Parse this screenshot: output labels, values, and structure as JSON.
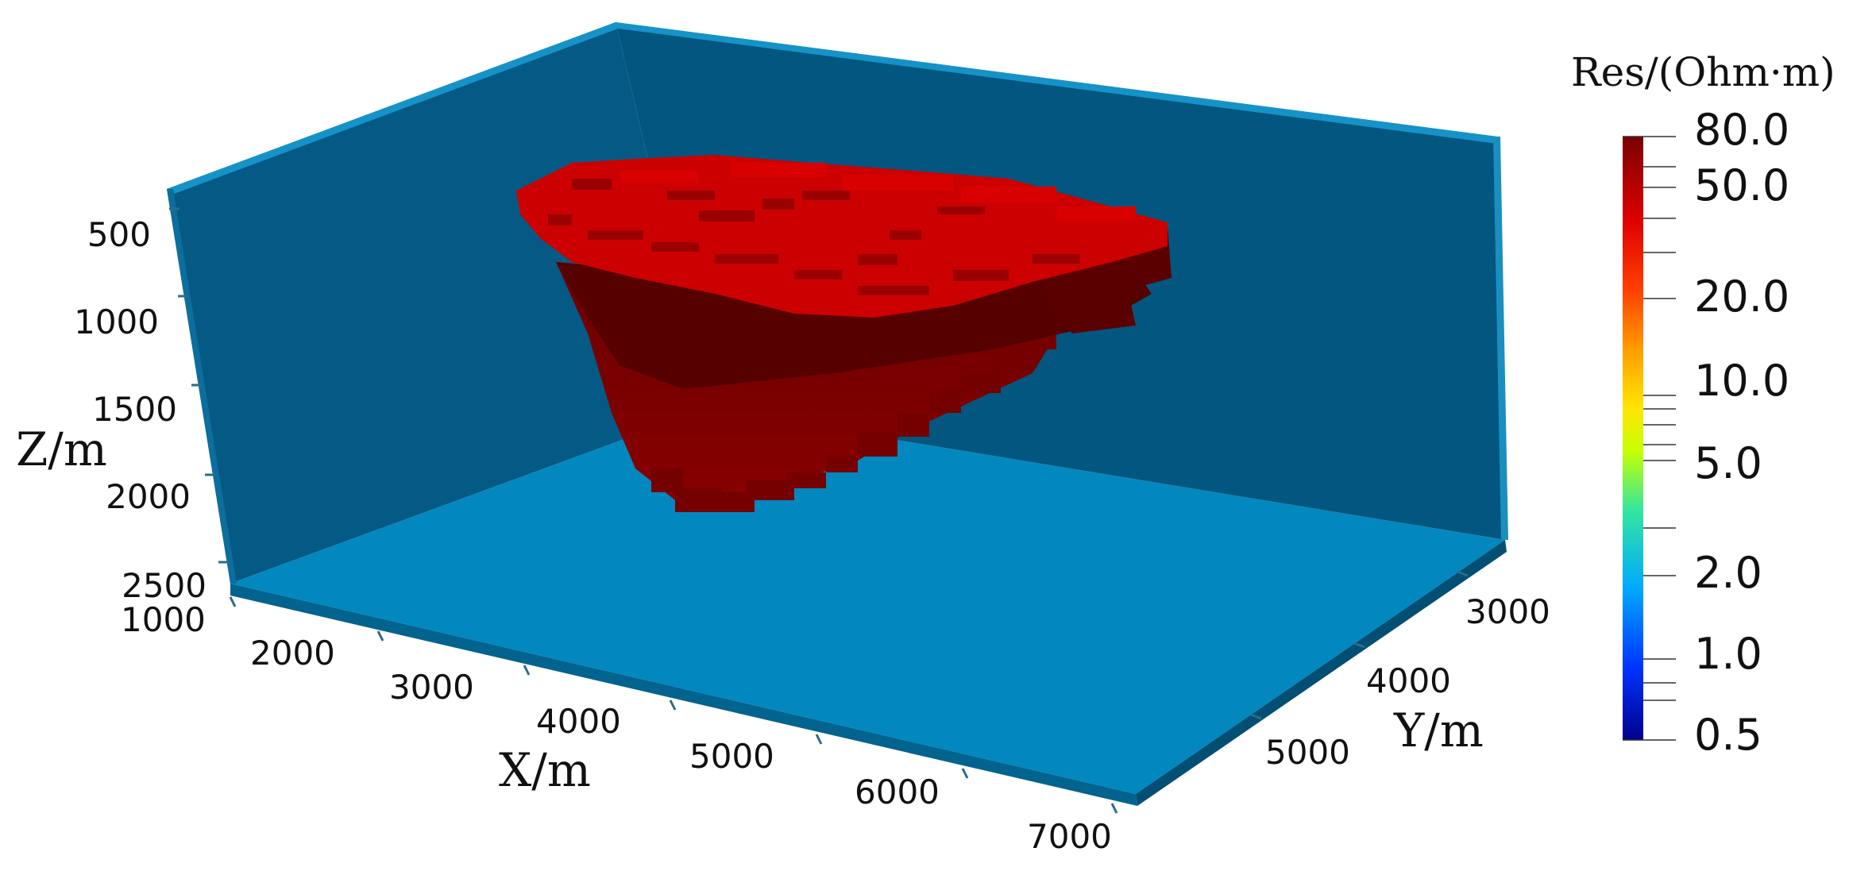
{
  "axes": {
    "z": {
      "title": "Z/m",
      "ticks": [
        "500",
        "1000",
        "1500",
        "2000",
        "2500"
      ]
    },
    "x": {
      "title": "X/m",
      "ticks": [
        "1000",
        "2000",
        "3000",
        "4000",
        "5000",
        "6000",
        "7000"
      ]
    },
    "y": {
      "title": "Y/m",
      "ticks": [
        "3000",
        "4000",
        "5000"
      ]
    }
  },
  "colorbar": {
    "title": "Res/(Ohm·m)",
    "scale": "log",
    "range": [
      0.5,
      80.0
    ],
    "labels": [
      "80.0",
      "50.0",
      "20.0",
      "10.0",
      "5.0",
      "2.0",
      "1.0",
      "0.5"
    ]
  },
  "colors": {
    "background_walls": "#03567f",
    "floor": "#0288be",
    "edges": "#1593c8",
    "anomaly_top": "#cc0000",
    "anomaly_body": "#7a0000",
    "anomaly_dark": "#5a0000"
  }
}
